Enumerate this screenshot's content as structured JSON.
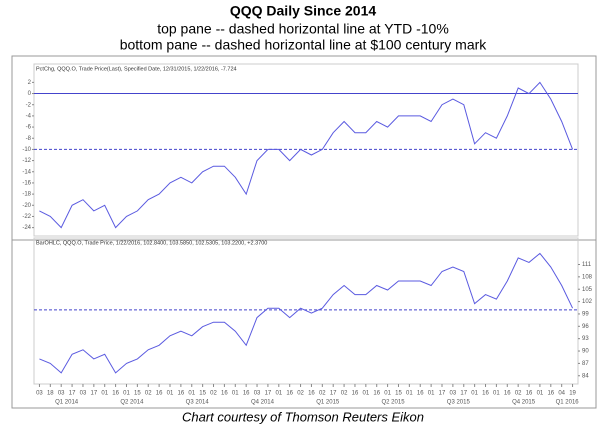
{
  "title": "QQQ Daily Since 2014",
  "subtitles": [
    "top pane -- dashed horizontal line at YTD -10%",
    "bottom pane -- dashed horizontal line at $100 century mark"
  ],
  "caption": "Chart courtesy of Thomson Reuters Eikon",
  "chart_data": [
    {
      "type": "line",
      "header": "PctChg, QQQ.O, Trade Price(Last), Specified Date, 12/31/2015, 1/22/2016, -7.724",
      "color": "#5a5ae0",
      "values": [
        -21,
        -22,
        -24,
        -20,
        -19,
        -21,
        -20,
        -24,
        -22,
        -21,
        -19,
        -18,
        -16,
        -15,
        -16,
        -14,
        -13,
        -13,
        -15,
        -18,
        -12,
        -10,
        -10,
        -12,
        -10,
        -11,
        -10,
        -7,
        -5,
        -7,
        -7,
        -5,
        -6,
        -4,
        -4,
        -4,
        -5,
        -2,
        -1,
        -2,
        -9,
        -7,
        -8,
        -4,
        1,
        0,
        2,
        -1,
        -5,
        -10
      ],
      "ylim": [
        -25.5,
        3.5
      ],
      "yticks": [
        2,
        0,
        -2,
        -4,
        -6,
        -8,
        -10,
        -12,
        -14,
        -16,
        -18,
        -20,
        -22,
        -24
      ],
      "hlines": [
        {
          "value": 0,
          "style": "solid"
        },
        {
          "value": -10,
          "style": "dashed"
        }
      ]
    },
    {
      "type": "line",
      "header": "BarOHLC, QQQ.O, Trade Price, 1/22/2016, 102.8400, 103.5850, 102.5305, 103.2200, +2.3700",
      "color": "#5a5ae0",
      "categories": [
        "03",
        "18",
        "03",
        "17",
        "03",
        "17",
        "01",
        "16",
        "01",
        "15",
        "02",
        "16",
        "01",
        "16",
        "01",
        "15",
        "02",
        "16",
        "01",
        "16",
        "03",
        "17",
        "01",
        "16",
        "02",
        "16",
        "02",
        "17",
        "02",
        "16",
        "01",
        "16",
        "01",
        "15",
        "01",
        "16",
        "01",
        "17",
        "03",
        "17",
        "01",
        "16",
        "01",
        "16",
        "02",
        "16",
        "01",
        "16",
        "04",
        "19"
      ],
      "quarters": [
        "Q1 2014",
        "Q2 2014",
        "Q3 2014",
        "Q4 2014",
        "Q1 2015",
        "Q2 2015",
        "Q3 2015",
        "Q4 2015",
        "Q1 2016"
      ],
      "values": [
        88.1,
        87.0,
        84.7,
        89.2,
        90.3,
        88.1,
        89.2,
        84.7,
        87.0,
        88.1,
        90.3,
        91.4,
        93.7,
        94.8,
        93.7,
        95.9,
        97.0,
        97.0,
        94.8,
        91.4,
        98.1,
        100.4,
        100.4,
        98.1,
        100.4,
        99.2,
        100.4,
        103.7,
        105.9,
        103.7,
        103.7,
        105.9,
        104.8,
        107.0,
        107.0,
        107.0,
        105.9,
        109.3,
        110.4,
        109.3,
        101.5,
        103.7,
        102.6,
        107.0,
        112.6,
        111.5,
        113.7,
        110.4,
        105.9,
        100.4
      ],
      "ylim": [
        82,
        115
      ],
      "yticks": [
        111,
        108,
        105,
        102,
        99,
        96,
        93,
        90,
        87,
        84
      ],
      "hlines": [
        {
          "value": 100,
          "style": "dashed"
        }
      ]
    }
  ]
}
